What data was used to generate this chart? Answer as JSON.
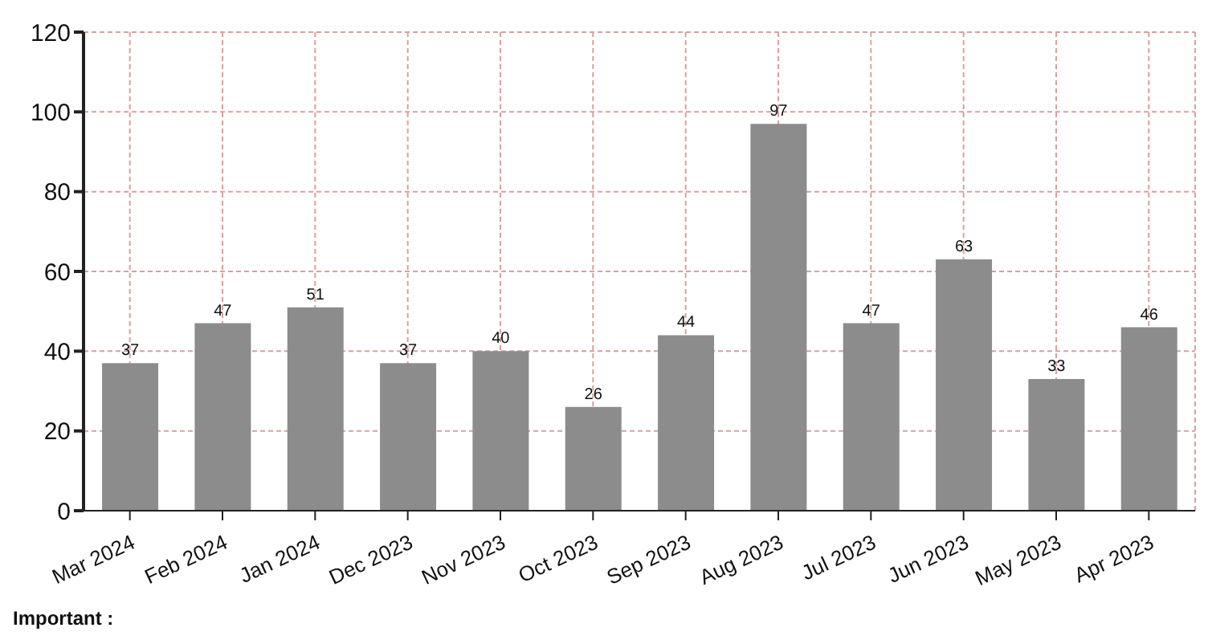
{
  "chart_data": {
    "type": "bar",
    "categories": [
      "Mar 2024",
      "Feb 2024",
      "Jan 2024",
      "Dec 2023",
      "Nov 2023",
      "Oct 2023",
      "Sep 2023",
      "Aug 2023",
      "Jul 2023",
      "Jun 2023",
      "May 2023",
      "Apr 2023"
    ],
    "values": [
      37,
      47,
      51,
      37,
      40,
      26,
      44,
      97,
      47,
      63,
      33,
      46
    ],
    "color": "#8c8c8c",
    "ylim": [
      0,
      120
    ],
    "yticks": [
      0,
      20,
      40,
      60,
      80,
      100,
      120
    ],
    "grid": true,
    "data_labels": true,
    "annotations": [
      "Important :"
    ]
  }
}
